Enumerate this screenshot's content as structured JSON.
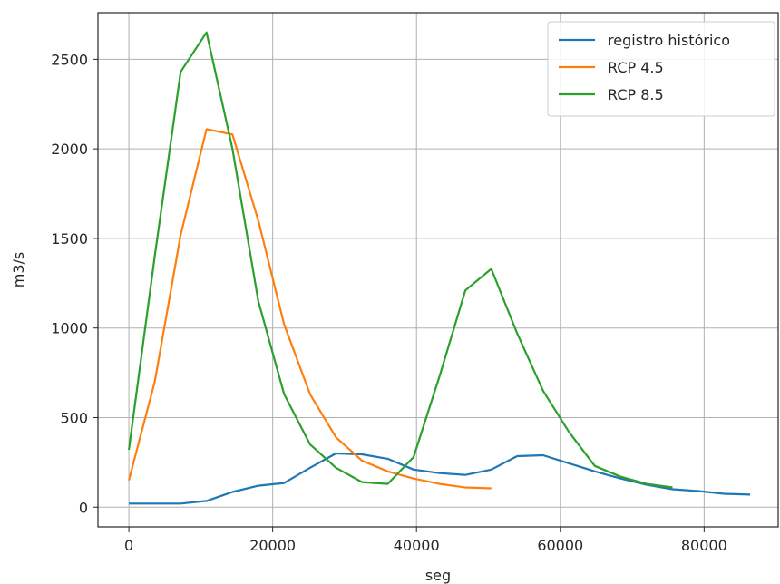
{
  "chart_data": {
    "type": "line",
    "xlabel": "seg",
    "ylabel": "m3/s",
    "xlim": [
      -4300,
      90300
    ],
    "ylim": [
      -110,
      2760
    ],
    "xticks": [
      0,
      20000,
      40000,
      60000,
      80000
    ],
    "xtick_labels": [
      "0",
      "20000",
      "40000",
      "60000",
      "80000"
    ],
    "yticks": [
      0,
      500,
      1000,
      1500,
      2000,
      2500
    ],
    "ytick_labels": [
      "0",
      "500",
      "1000",
      "1500",
      "2000",
      "2500"
    ],
    "grid": true,
    "legend_position": "top-right",
    "series": [
      {
        "name": "registro histórico",
        "color": "#1f77b4",
        "x": [
          0,
          3600,
          7200,
          10800,
          14400,
          18000,
          21600,
          25200,
          28800,
          32400,
          36000,
          39600,
          43200,
          46800,
          50400,
          54000,
          57600,
          61200,
          64800,
          68400,
          72000,
          75600,
          79200,
          82800,
          86400
        ],
        "y": [
          20,
          20,
          20,
          35,
          85,
          120,
          135,
          220,
          300,
          295,
          270,
          210,
          190,
          180,
          210,
          285,
          290,
          245,
          200,
          160,
          125,
          100,
          90,
          75,
          70
        ]
      },
      {
        "name": "RCP 4.5",
        "color": "#ff7f0e",
        "x": [
          0,
          3600,
          7200,
          10800,
          14400,
          18000,
          21600,
          25200,
          28800,
          32400,
          36000,
          39600,
          43200,
          46800,
          50400
        ],
        "y": [
          150,
          700,
          1520,
          2110,
          2080,
          1600,
          1020,
          630,
          390,
          260,
          200,
          160,
          130,
          110,
          105
        ]
      },
      {
        "name": "RCP 8.5",
        "color": "#2ca02c",
        "x": [
          0,
          3600,
          7200,
          10800,
          14400,
          18000,
          21600,
          25200,
          28800,
          32400,
          36000,
          39600,
          43200,
          46800,
          50400,
          54000,
          57600,
          61200,
          64800,
          68400,
          72000,
          75600
        ],
        "y": [
          320,
          1400,
          2430,
          2650,
          2000,
          1150,
          630,
          350,
          220,
          140,
          130,
          280,
          730,
          1210,
          1330,
          970,
          650,
          420,
          230,
          170,
          130,
          110
        ]
      }
    ]
  }
}
